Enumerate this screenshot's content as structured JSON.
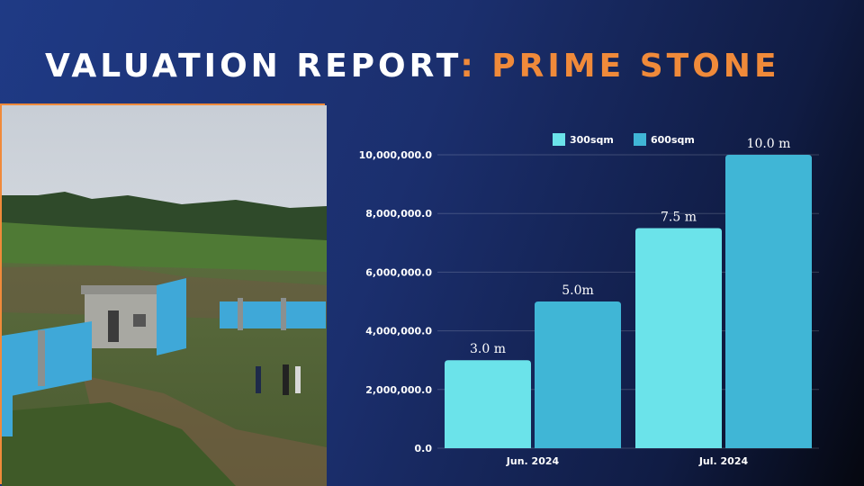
{
  "slide": {
    "title_part1": "VALUATION REPORT",
    "title_part2": ": PRIME STONE"
  },
  "colors": {
    "accent": "#f08a3a",
    "series_300": "#6be3ea",
    "series_600": "#40b6d6"
  },
  "photo": {
    "description_icon": "land-photo-icon"
  },
  "chart_data": {
    "type": "bar",
    "categories": [
      "Jun. 2024",
      "Jul. 2024"
    ],
    "series": [
      {
        "name": "300sqm",
        "values": [
          3000000,
          7500000
        ],
        "labels": [
          "3.0 m",
          "7.5 m"
        ],
        "color": "#6be3ea"
      },
      {
        "name": "600sqm",
        "values": [
          5000000,
          10000000
        ],
        "labels": [
          "5.0m",
          "10.0 m"
        ],
        "color": "#40b6d6"
      }
    ],
    "yticks": [
      "0.0",
      "2,000,000.0",
      "4,000,000.0",
      "6,000,000.0",
      "8,000,000.0",
      "10,000,000.0"
    ],
    "ylim": [
      0,
      10000000
    ],
    "grid": true,
    "legend": "top"
  }
}
